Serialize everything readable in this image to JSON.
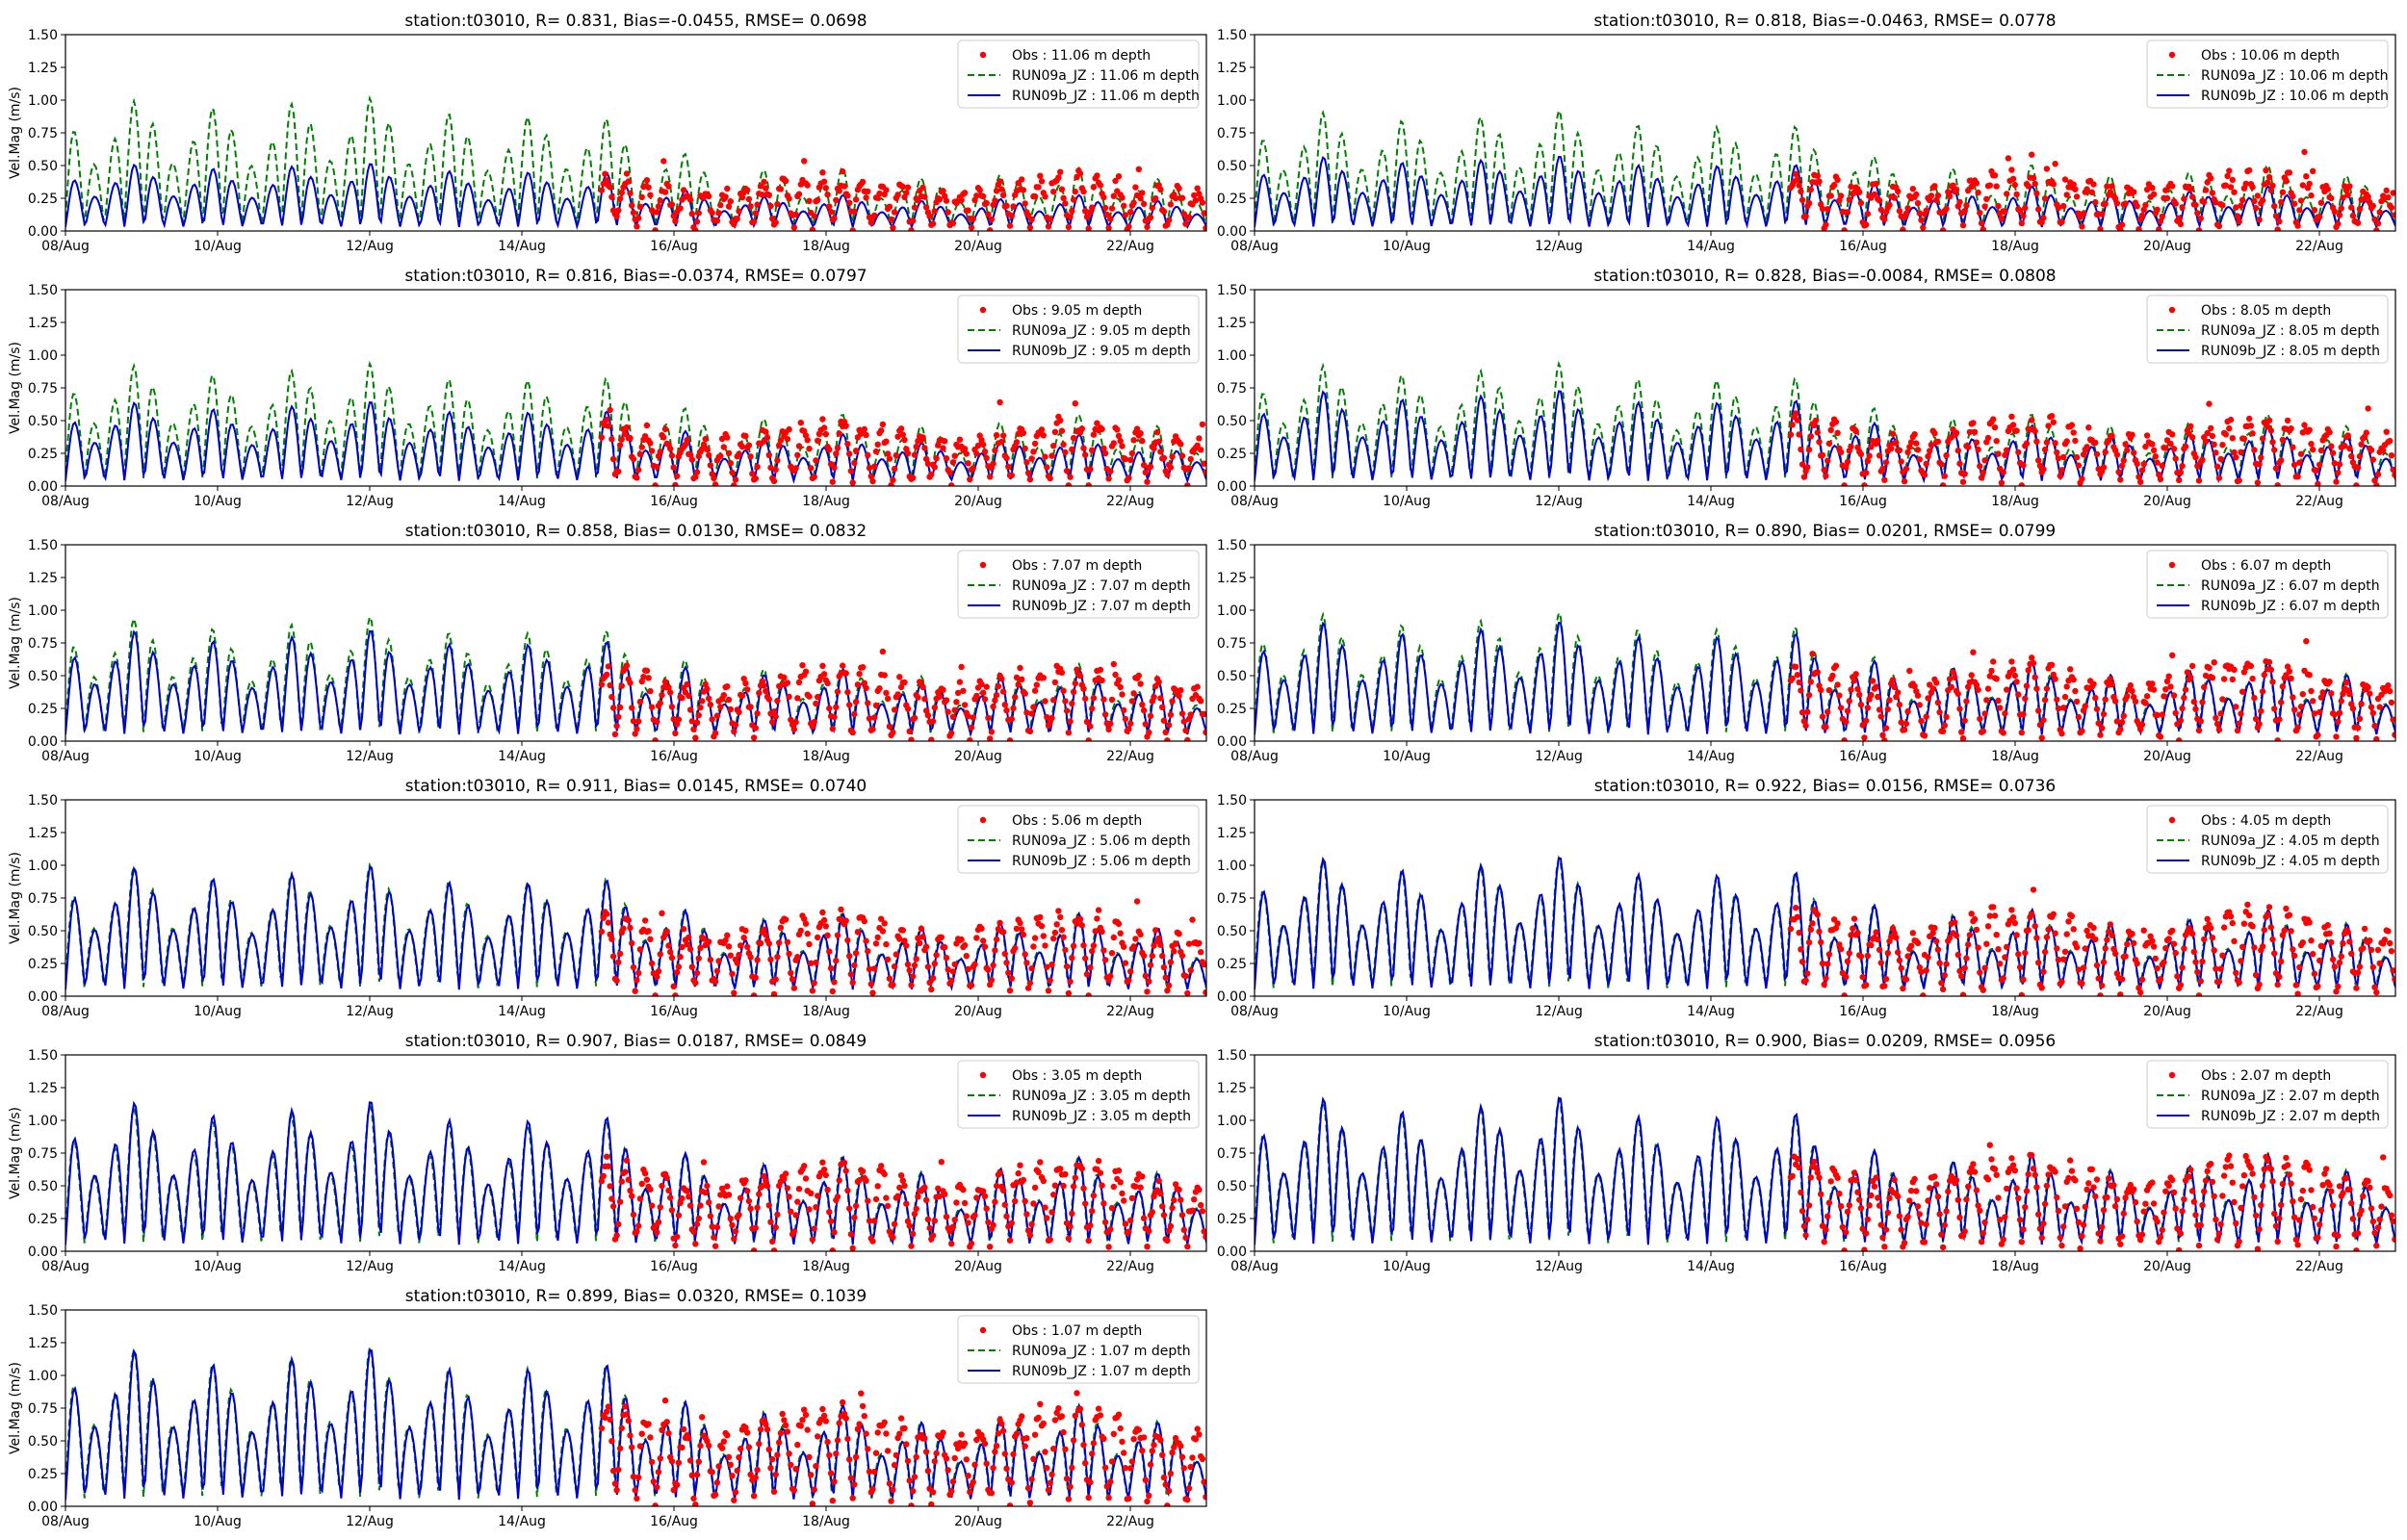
{
  "figure": {
    "station": "t03010"
  },
  "colors": {
    "obs": "#ff0000",
    "run09a": "#008000",
    "run09b": "#0000cc"
  },
  "chart_data": [
    {
      "type": "line",
      "title": "station:t03010, R= 0.831, Bias=-0.0455, RMSE= 0.0698",
      "ylabel": "Vel.Mag (m/s)",
      "xlabel": "",
      "ylim": [
        0,
        1.5
      ],
      "yticks": [
        "0.00",
        "0.25",
        "0.50",
        "0.75",
        "1.00",
        "1.25",
        "1.50"
      ],
      "xtick_labels": [
        "08/Aug",
        "10/Aug",
        "12/Aug",
        "14/Aug",
        "16/Aug",
        "18/Aug",
        "20/Aug",
        "22/Aug"
      ],
      "legend": [
        "Obs : 11.06 m depth",
        "RUN09a_JZ : 11.06 m depth",
        "RUN09b_JZ : 11.06 m depth"
      ],
      "legend_position": "upper-right",
      "series": [
        {
          "name": "RUN09a_JZ",
          "style": "dashed",
          "base": 0.04,
          "peak": 0.4,
          "early_peak": 0.95
        },
        {
          "name": "RUN09b_JZ",
          "style": "solid",
          "base": 0.03,
          "peak": 0.22,
          "early_peak": 0.47
        },
        {
          "name": "Obs",
          "style": "points",
          "level": 0.3
        }
      ]
    },
    {
      "type": "line",
      "title": "station:t03010, R= 0.818, Bias=-0.0463, RMSE= 0.0778",
      "ylabel": "",
      "xlabel": "",
      "ylim": [
        0,
        1.5
      ],
      "yticks": [
        "0.00",
        "0.25",
        "0.50",
        "0.75",
        "1.00",
        "1.25",
        "1.50"
      ],
      "xtick_labels": [
        "08/Aug",
        "10/Aug",
        "12/Aug",
        "14/Aug",
        "16/Aug",
        "18/Aug",
        "20/Aug",
        "22/Aug"
      ],
      "legend": [
        "Obs : 10.06 m depth",
        "RUN09a_JZ : 10.06 m depth",
        "RUN09b_JZ : 10.06 m depth"
      ],
      "legend_position": "upper-right",
      "series": [
        {
          "name": "RUN09a_JZ",
          "style": "dashed",
          "base": 0.04,
          "peak": 0.42,
          "early_peak": 0.85
        },
        {
          "name": "RUN09b_JZ",
          "style": "solid",
          "base": 0.03,
          "peak": 0.28,
          "early_peak": 0.52
        },
        {
          "name": "Obs",
          "style": "points",
          "level": 0.32
        }
      ]
    },
    {
      "type": "line",
      "title": "station:t03010, R= 0.816, Bias=-0.0374, RMSE= 0.0797",
      "ylabel": "Vel.Mag (m/s)",
      "xlabel": "",
      "ylim": [
        0,
        1.5
      ],
      "yticks": [
        "0.00",
        "0.25",
        "0.50",
        "0.75",
        "1.00",
        "1.25",
        "1.50"
      ],
      "xtick_labels": [
        "08/Aug",
        "10/Aug",
        "12/Aug",
        "14/Aug",
        "16/Aug",
        "18/Aug",
        "20/Aug",
        "22/Aug"
      ],
      "legend": [
        "Obs : 9.05 m depth",
        "RUN09a_JZ : 9.05 m depth",
        "RUN09b_JZ : 9.05 m depth"
      ],
      "legend_position": "upper-right",
      "series": [
        {
          "name": "RUN09a_JZ",
          "style": "dashed",
          "base": 0.05,
          "peak": 0.45,
          "early_peak": 0.85
        },
        {
          "name": "RUN09b_JZ",
          "style": "solid",
          "base": 0.04,
          "peak": 0.32,
          "early_peak": 0.58
        },
        {
          "name": "Obs",
          "style": "points",
          "level": 0.36
        }
      ]
    },
    {
      "type": "line",
      "title": "station:t03010, R= 0.828, Bias=-0.0084, RMSE= 0.0808",
      "ylabel": "",
      "xlabel": "",
      "ylim": [
        0,
        1.5
      ],
      "yticks": [
        "0.00",
        "0.25",
        "0.50",
        "0.75",
        "1.00",
        "1.25",
        "1.50"
      ],
      "xtick_labels": [
        "08/Aug",
        "10/Aug",
        "12/Aug",
        "14/Aug",
        "16/Aug",
        "18/Aug",
        "20/Aug",
        "22/Aug"
      ],
      "legend": [
        "Obs : 8.05 m depth",
        "RUN09a_JZ : 8.05 m depth",
        "RUN09b_JZ : 8.05 m depth"
      ],
      "legend_position": "upper-right",
      "series": [
        {
          "name": "RUN09a_JZ",
          "style": "dashed",
          "base": 0.05,
          "peak": 0.45,
          "early_peak": 0.85
        },
        {
          "name": "RUN09b_JZ",
          "style": "solid",
          "base": 0.04,
          "peak": 0.38,
          "early_peak": 0.66
        },
        {
          "name": "Obs",
          "style": "points",
          "level": 0.38
        }
      ]
    },
    {
      "type": "line",
      "title": "station:t03010, R= 0.858, Bias= 0.0130, RMSE= 0.0832",
      "ylabel": "Vel.Mag (m/s)",
      "xlabel": "",
      "ylim": [
        0,
        1.5
      ],
      "yticks": [
        "0.00",
        "0.25",
        "0.50",
        "0.75",
        "1.00",
        "1.25",
        "1.50"
      ],
      "xtick_labels": [
        "08/Aug",
        "10/Aug",
        "12/Aug",
        "14/Aug",
        "16/Aug",
        "18/Aug",
        "20/Aug",
        "22/Aug"
      ],
      "legend": [
        "Obs : 7.07 m depth",
        "RUN09a_JZ : 7.07 m depth",
        "RUN09b_JZ : 7.07 m depth"
      ],
      "legend_position": "upper-right",
      "series": [
        {
          "name": "RUN09a_JZ",
          "style": "dashed",
          "base": 0.06,
          "peak": 0.48,
          "early_peak": 0.85
        },
        {
          "name": "RUN09b_JZ",
          "style": "solid",
          "base": 0.05,
          "peak": 0.45,
          "early_peak": 0.76
        },
        {
          "name": "Obs",
          "style": "points",
          "level": 0.42
        }
      ]
    },
    {
      "type": "line",
      "title": "station:t03010, R= 0.890, Bias= 0.0201, RMSE= 0.0799",
      "ylabel": "",
      "xlabel": "",
      "ylim": [
        0,
        1.5
      ],
      "yticks": [
        "0.00",
        "0.25",
        "0.50",
        "0.75",
        "1.00",
        "1.25",
        "1.50"
      ],
      "xtick_labels": [
        "08/Aug",
        "10/Aug",
        "12/Aug",
        "14/Aug",
        "16/Aug",
        "18/Aug",
        "20/Aug",
        "22/Aug"
      ],
      "legend": [
        "Obs : 6.07 m depth",
        "RUN09a_JZ : 6.07 m depth",
        "RUN09b_JZ : 6.07 m depth"
      ],
      "legend_position": "upper-right",
      "series": [
        {
          "name": "RUN09a_JZ",
          "style": "dashed",
          "base": 0.06,
          "peak": 0.5,
          "early_peak": 0.88
        },
        {
          "name": "RUN09b_JZ",
          "style": "solid",
          "base": 0.05,
          "peak": 0.5,
          "early_peak": 0.82
        },
        {
          "name": "Obs",
          "style": "points",
          "level": 0.45
        }
      ]
    },
    {
      "type": "line",
      "title": "station:t03010, R= 0.911, Bias= 0.0145, RMSE= 0.0740",
      "ylabel": "Vel.Mag (m/s)",
      "xlabel": "",
      "ylim": [
        0,
        1.5
      ],
      "yticks": [
        "0.00",
        "0.25",
        "0.50",
        "0.75",
        "1.00",
        "1.25",
        "1.50"
      ],
      "xtick_labels": [
        "08/Aug",
        "10/Aug",
        "12/Aug",
        "14/Aug",
        "16/Aug",
        "18/Aug",
        "20/Aug",
        "22/Aug"
      ],
      "legend": [
        "Obs : 5.06 m depth",
        "RUN09a_JZ : 5.06 m depth",
        "RUN09b_JZ : 5.06 m depth"
      ],
      "legend_position": "upper-right",
      "series": [
        {
          "name": "RUN09a_JZ",
          "style": "dashed",
          "base": 0.06,
          "peak": 0.52,
          "early_peak": 0.9
        },
        {
          "name": "RUN09b_JZ",
          "style": "solid",
          "base": 0.05,
          "peak": 0.52,
          "early_peak": 0.9
        },
        {
          "name": "Obs",
          "style": "points",
          "level": 0.48
        }
      ]
    },
    {
      "type": "line",
      "title": "station:t03010, R= 0.922, Bias= 0.0156, RMSE= 0.0736",
      "ylabel": "",
      "xlabel": "",
      "ylim": [
        0,
        1.5
      ],
      "yticks": [
        "0.00",
        "0.25",
        "0.50",
        "0.75",
        "1.00",
        "1.25",
        "1.50"
      ],
      "xtick_labels": [
        "08/Aug",
        "10/Aug",
        "12/Aug",
        "14/Aug",
        "16/Aug",
        "18/Aug",
        "20/Aug",
        "22/Aug"
      ],
      "legend": [
        "Obs : 4.05 m depth",
        "RUN09a_JZ : 4.05 m depth",
        "RUN09b_JZ : 4.05 m depth"
      ],
      "legend_position": "upper-right",
      "series": [
        {
          "name": "RUN09a_JZ",
          "style": "dashed",
          "base": 0.06,
          "peak": 0.55,
          "early_peak": 0.95
        },
        {
          "name": "RUN09b_JZ",
          "style": "solid",
          "base": 0.05,
          "peak": 0.55,
          "early_peak": 0.97
        },
        {
          "name": "Obs",
          "style": "points",
          "level": 0.5
        }
      ]
    },
    {
      "type": "line",
      "title": "station:t03010, R= 0.907, Bias= 0.0187, RMSE= 0.0849",
      "ylabel": "Vel.Mag (m/s)",
      "xlabel": "",
      "ylim": [
        0,
        1.5
      ],
      "yticks": [
        "0.00",
        "0.25",
        "0.50",
        "0.75",
        "1.00",
        "1.25",
        "1.50"
      ],
      "xtick_labels": [
        "08/Aug",
        "10/Aug",
        "12/Aug",
        "14/Aug",
        "16/Aug",
        "18/Aug",
        "20/Aug",
        "22/Aug"
      ],
      "legend": [
        "Obs : 3.05 m depth",
        "RUN09a_JZ : 3.05 m depth",
        "RUN09b_JZ : 3.05 m depth"
      ],
      "legend_position": "upper-right",
      "series": [
        {
          "name": "RUN09a_JZ",
          "style": "dashed",
          "base": 0.06,
          "peak": 0.6,
          "early_peak": 1.0
        },
        {
          "name": "RUN09b_JZ",
          "style": "solid",
          "base": 0.05,
          "peak": 0.6,
          "early_peak": 1.05
        },
        {
          "name": "Obs",
          "style": "points",
          "level": 0.52
        }
      ]
    },
    {
      "type": "line",
      "title": "station:t03010, R= 0.900, Bias= 0.0209, RMSE= 0.0956",
      "ylabel": "",
      "xlabel": "",
      "ylim": [
        0,
        1.5
      ],
      "yticks": [
        "0.00",
        "0.25",
        "0.50",
        "0.75",
        "1.00",
        "1.25",
        "1.50"
      ],
      "xtick_labels": [
        "08/Aug",
        "10/Aug",
        "12/Aug",
        "14/Aug",
        "16/Aug",
        "18/Aug",
        "20/Aug",
        "22/Aug"
      ],
      "legend": [
        "Obs : 2.07 m depth",
        "RUN09a_JZ : 2.07 m depth",
        "RUN09b_JZ : 2.07 m depth"
      ],
      "legend_position": "upper-right",
      "series": [
        {
          "name": "RUN09a_JZ",
          "style": "dashed",
          "base": 0.06,
          "peak": 0.62,
          "early_peak": 1.05
        },
        {
          "name": "RUN09b_JZ",
          "style": "solid",
          "base": 0.05,
          "peak": 0.62,
          "early_peak": 1.08
        },
        {
          "name": "Obs",
          "style": "points",
          "level": 0.55
        }
      ]
    },
    {
      "type": "line",
      "title": "station:t03010, R= 0.899, Bias= 0.0320, RMSE= 0.1039",
      "ylabel": "Vel.Mag (m/s)",
      "xlabel": "",
      "ylim": [
        0,
        1.5
      ],
      "yticks": [
        "0.00",
        "0.25",
        "0.50",
        "0.75",
        "1.00",
        "1.25",
        "1.50"
      ],
      "xtick_labels": [
        "08/Aug",
        "10/Aug",
        "12/Aug",
        "14/Aug",
        "16/Aug",
        "18/Aug",
        "20/Aug",
        "22/Aug"
      ],
      "legend": [
        "Obs : 1.07 m depth",
        "RUN09a_JZ : 1.07 m depth",
        "RUN09b_JZ : 1.07 m depth"
      ],
      "legend_position": "upper-right",
      "series": [
        {
          "name": "RUN09a_JZ",
          "style": "dashed",
          "base": 0.06,
          "peak": 0.65,
          "early_peak": 1.1
        },
        {
          "name": "RUN09b_JZ",
          "style": "solid",
          "base": 0.05,
          "peak": 0.65,
          "early_peak": 1.1
        },
        {
          "name": "Obs",
          "style": "points",
          "level": 0.58
        }
      ]
    }
  ]
}
